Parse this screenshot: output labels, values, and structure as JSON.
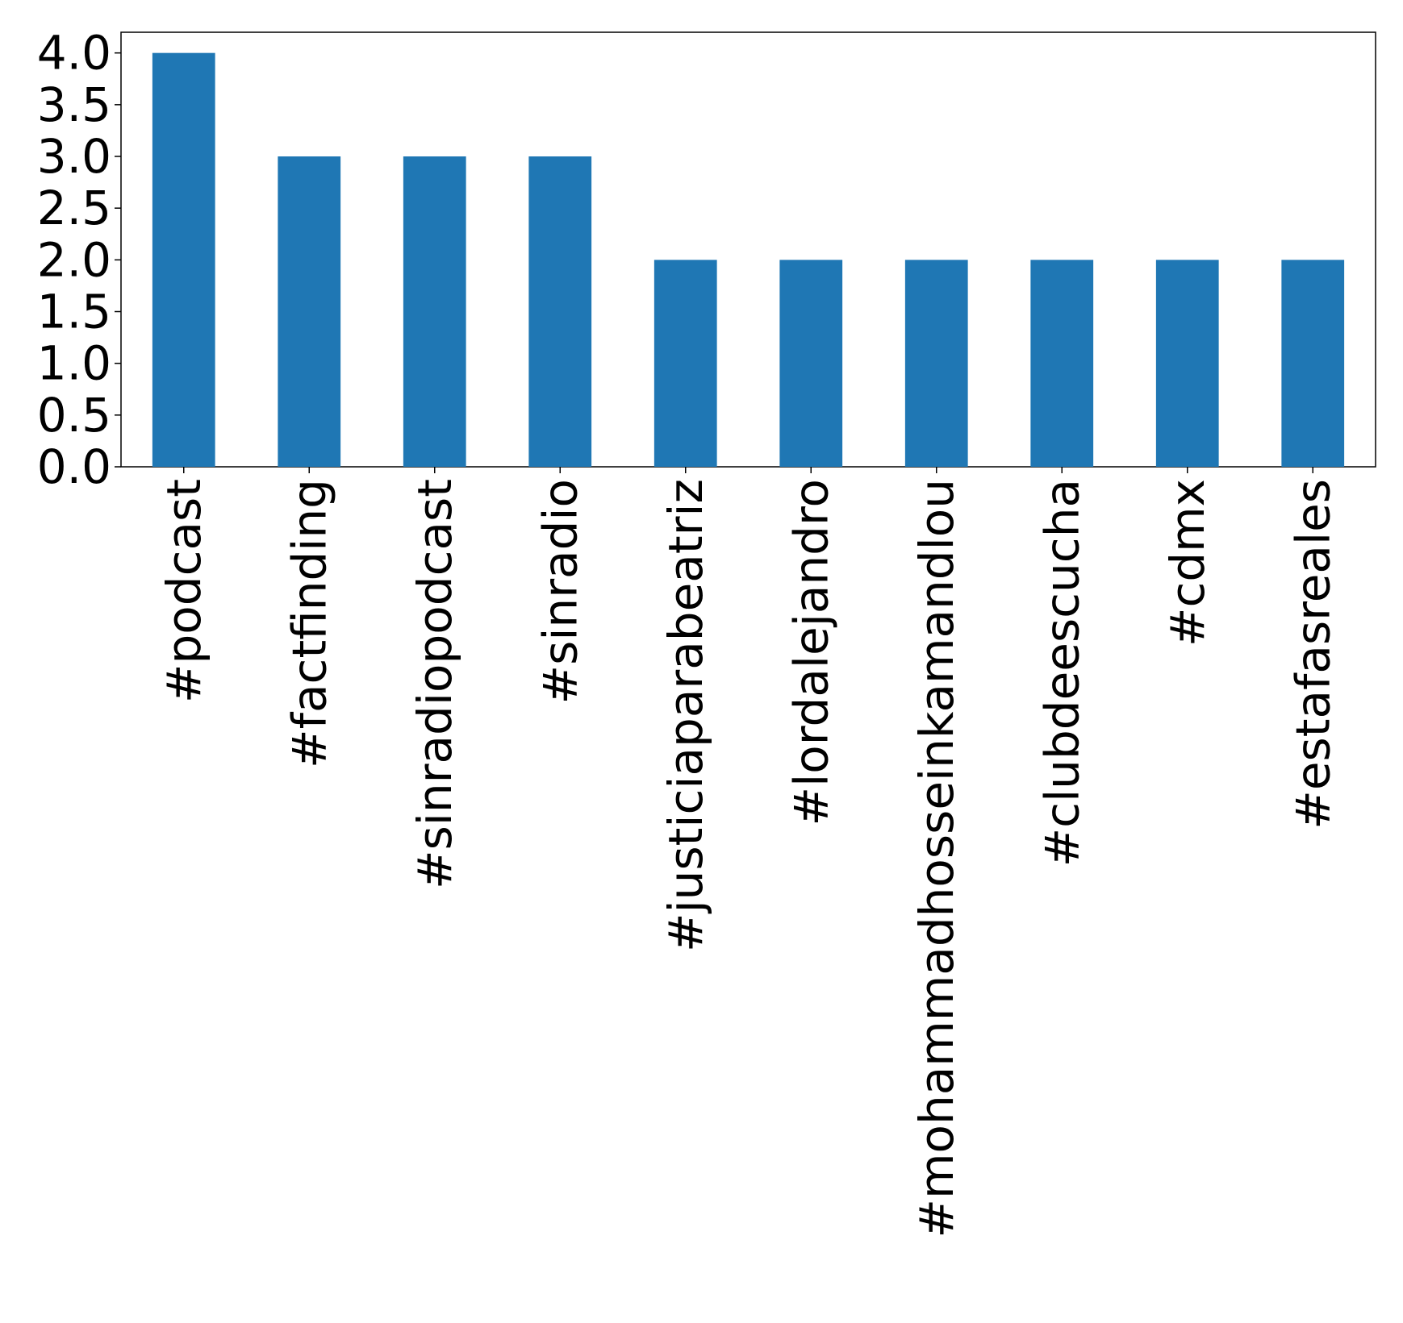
{
  "chart_data": {
    "type": "bar",
    "title": "",
    "xlabel": "",
    "ylabel": "",
    "categories": [
      "#podcast",
      "#factfinding",
      "#sinradiopodcast",
      "#sinradio",
      "#justiciaparabeatriz",
      "#lordalejandro",
      "#mohammadhosseinkamandlou",
      "#clubdeescucha",
      "#cdmx",
      "#estafasreales"
    ],
    "values": [
      4,
      3,
      3,
      3,
      2,
      2,
      2,
      2,
      2,
      2
    ],
    "ylim": [
      0,
      4.2
    ],
    "yticks": [
      "0.0",
      "0.5",
      "1.0",
      "1.5",
      "2.0",
      "2.5",
      "3.0",
      "3.5",
      "4.0"
    ],
    "grid": false,
    "legend": "none",
    "bar_color": "#1f77b4"
  }
}
